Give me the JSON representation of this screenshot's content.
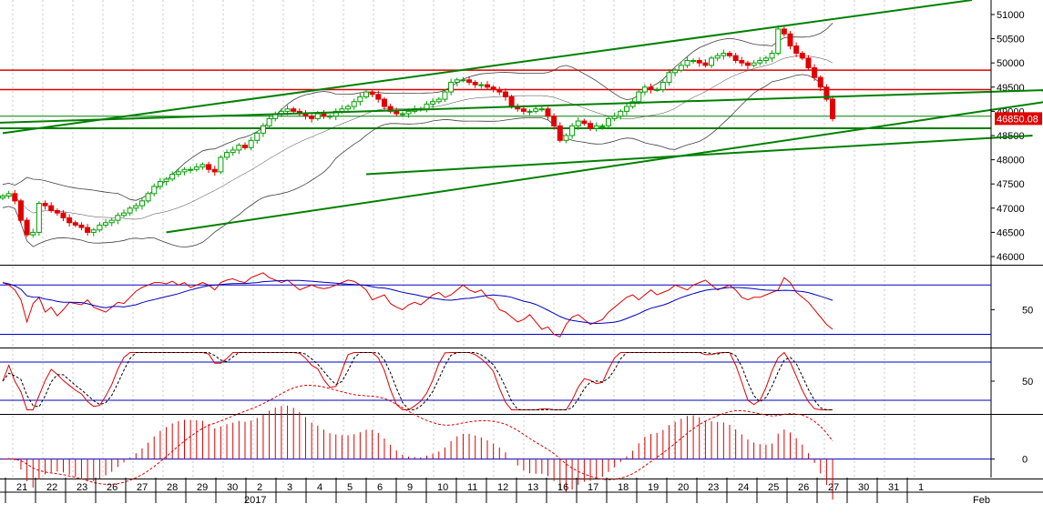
{
  "chart_data": {
    "type": "candlestick",
    "instrument_last_price": "46850.08",
    "colors": {
      "up_candle": "#00a000",
      "down_candle": "#e00000",
      "trendline": "#008000",
      "resistance": "#e00000",
      "support": "#008000",
      "bollinger": "#404040",
      "rsi": "#e00000",
      "rsi_ma": "#0000c0",
      "stoch_k": "#e00000",
      "stoch_d": "#000000",
      "macd_hist": "#e00000",
      "ref_line": "#0000c0",
      "price_badge_bg": "#e00000",
      "price_badge_text": "#ffffff"
    },
    "price_axis": {
      "ylim": [
        45850,
        51300
      ],
      "ticks": [
        "51000",
        "50500",
        "50000",
        "49500",
        "49000",
        "48500",
        "48000",
        "47500",
        "47000",
        "46500",
        "46000"
      ]
    },
    "x_axis": {
      "ticks": [
        "21",
        "22",
        "23",
        "26",
        "27",
        "28",
        "29",
        "30",
        "2",
        "3",
        "4",
        "5",
        "6",
        "9",
        "10",
        "11",
        "12",
        "13",
        "16",
        "17",
        "18",
        "19",
        "20",
        "23",
        "24",
        "25",
        "26",
        "27",
        "30",
        "31",
        "1"
      ],
      "secondary": [
        "2017",
        "Feb"
      ]
    },
    "candles_close": [
      47250,
      47300,
      47150,
      46750,
      46450,
      46500,
      47100,
      47050,
      46950,
      46900,
      46800,
      46700,
      46650,
      46600,
      46500,
      46550,
      46650,
      46700,
      46750,
      46850,
      46900,
      47000,
      47050,
      47150,
      47300,
      47450,
      47550,
      47600,
      47700,
      47750,
      47800,
      47800,
      47850,
      47900,
      47800,
      47750,
      48050,
      48150,
      48200,
      48300,
      48250,
      48400,
      48550,
      48700,
      48850,
      48950,
      49000,
      49050,
      49000,
      48950,
      48900,
      48850,
      48950,
      48900,
      48900,
      49000,
      49050,
      49100,
      49200,
      49300,
      49400,
      49350,
      49250,
      49100,
      49000,
      48950,
      48950,
      49000,
      49050,
      49050,
      49150,
      49200,
      49250,
      49400,
      49600,
      49650,
      49650,
      49600,
      49550,
      49550,
      49500,
      49450,
      49400,
      49300,
      49100,
      49050,
      49000,
      49000,
      49050,
      49050,
      48900,
      48700,
      48400,
      48500,
      48700,
      48800,
      48750,
      48650,
      48700,
      48700,
      48850,
      48900,
      49000,
      49100,
      49200,
      49400,
      49500,
      49450,
      49450,
      49600,
      49800,
      49850,
      49950,
      50050,
      50050,
      50000,
      49950,
      50100,
      50150,
      50200,
      50150,
      50050,
      50000,
      49950,
      50000,
      50050,
      50100,
      50200,
      50700,
      50600,
      50350,
      50200,
      50100,
      49900,
      49700,
      49500,
      49250,
      48850
    ],
    "resistance_levels": [
      49850,
      49450
    ],
    "support_levels": [
      48900,
      48650
    ],
    "trendlines": [
      {
        "from": [
          0,
          48550
        ],
        "to": [
          160,
          51300
        ]
      },
      {
        "from": [
          27,
          46500
        ],
        "to": [
          175,
          49250
        ]
      },
      {
        "from": [
          60,
          47700
        ],
        "to": [
          170,
          48500
        ]
      },
      {
        "from": [
          -30,
          48650
        ],
        "to": [
          175,
          49450
        ]
      }
    ],
    "rsi": {
      "ticks": [
        "50"
      ],
      "levels": [
        70,
        30
      ],
      "ylim": [
        20,
        85
      ],
      "value_series": [
        72,
        70,
        66,
        58,
        40,
        55,
        60,
        48,
        52,
        45,
        50,
        56,
        55,
        54,
        58,
        52,
        50,
        48,
        52,
        56,
        55,
        60,
        65,
        68,
        70,
        72,
        72,
        71,
        73,
        70,
        72,
        68,
        70,
        72,
        70,
        66,
        72,
        74,
        75,
        73,
        72,
        76,
        78,
        80,
        76,
        74,
        72,
        74,
        70,
        66,
        68,
        70,
        68,
        67,
        68,
        70,
        72,
        74,
        73,
        70,
        66,
        58,
        60,
        62,
        55,
        52,
        50,
        54,
        56,
        54,
        58,
        62,
        64,
        60,
        62,
        66,
        70,
        66,
        64,
        66,
        60,
        58,
        50,
        48,
        44,
        40,
        42,
        46,
        40,
        34,
        36,
        30,
        28,
        38,
        44,
        46,
        42,
        38,
        40,
        42,
        48,
        52,
        56,
        60,
        62,
        58,
        62,
        66,
        62,
        64,
        66,
        70,
        68,
        66,
        70,
        72,
        74,
        70,
        66,
        68,
        70,
        66,
        60,
        58,
        60,
        60,
        62,
        64,
        66,
        76,
        72,
        64,
        60,
        56,
        50,
        44,
        38,
        34
      ]
    },
    "stochastic": {
      "ticks": [
        "50"
      ],
      "levels": [
        80,
        20
      ],
      "ylim": [
        0,
        100
      ]
    },
    "macd": {
      "ticks": [
        "0"
      ],
      "ylim": [
        -30,
        70
      ]
    }
  }
}
